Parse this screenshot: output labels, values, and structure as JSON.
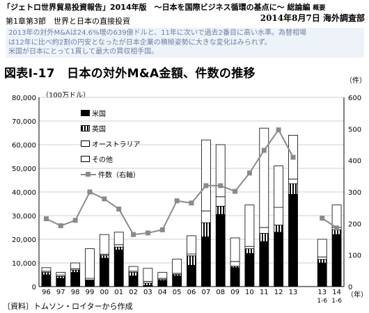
{
  "header": {
    "report_title": "「ジェトロ世界貿易投資報告」2014年版　～日本を国際ビジネス循環の基点に～",
    "overview": "総論編",
    "overview_suffix": "概要",
    "chapter": "第1章第3節　世界と日本の直接投資",
    "date": "2014年8月7日 海外調査部"
  },
  "summary_lines": [
    "2013年の対外M&Aは24.6%増の639億ドルと、11年に次いで過去2番目に高い水準。為替相場",
    "は12年に比べ約2割の円安となったが日本企業の積極姿勢に大きな変化はみられず。",
    "米国が日本にとって1貫して最大の買収相手国。"
  ],
  "figure_title": "図表Ⅰ-17　日本の対外M&A金額、件数の推移",
  "source": "〔資料〕トムソン・ロイターから作成",
  "chart_data": {
    "type": "bar",
    "stacked": true,
    "ylabel": "（100万ドル）",
    "y2label": "（件）",
    "xlabel_suffix": "（年）",
    "ylim": [
      0,
      80000
    ],
    "y2lim": [
      0,
      600
    ],
    "yticks": [
      "0",
      "10,000",
      "20,000",
      "30,000",
      "40,000",
      "50,000",
      "60,000",
      "70,000",
      "80,000"
    ],
    "y2ticks": [
      "0",
      "100",
      "200",
      "300",
      "400",
      "500",
      "600"
    ],
    "categories": [
      "96",
      "97",
      "98",
      "99",
      "00",
      "01",
      "02",
      "03",
      "04",
      "05",
      "06",
      "07",
      "08",
      "09",
      "10",
      "11",
      "12",
      "13",
      "13\n1-6",
      "14\n1-6"
    ],
    "legend_placement": "top-left",
    "colors": {
      "us": "#000000",
      "uk": "hatched",
      "au": "#ffffff",
      "other": "#ffffff",
      "count": "#8a8a8a"
    },
    "series": [
      {
        "name": "米国",
        "values": [
          5000,
          3500,
          6000,
          2500,
          12000,
          15500,
          4500,
          500,
          2500,
          4500,
          9000,
          21000,
          30500,
          8000,
          14000,
          19000,
          23000,
          39000,
          10000,
          22000
        ]
      },
      {
        "name": "英国",
        "values": [
          1000,
          800,
          1000,
          300,
          1200,
          1200,
          1500,
          1000,
          500,
          600,
          4000,
          6000,
          3500,
          600,
          2000,
          3500,
          3000,
          4500,
          1500,
          2000
        ]
      },
      {
        "name": "オーストラリア",
        "values": [
          500,
          500,
          500,
          700,
          500,
          1000,
          500,
          700,
          500,
          500,
          800,
          5000,
          4000,
          2000,
          1000,
          2500,
          7500,
          2000,
          1000,
          1000
        ]
      },
      {
        "name": "その他",
        "values": [
          1500,
          1200,
          2500,
          12500,
          8300,
          5300,
          2000,
          5500,
          2500,
          6000,
          7700,
          30000,
          22000,
          10000,
          17500,
          42000,
          17500,
          18500,
          7500,
          9500
        ]
      }
    ],
    "line_series": {
      "name": "件数（右軸）",
      "values": [
        215,
        193,
        210,
        300,
        278,
        246,
        165,
        170,
        180,
        272,
        265,
        320,
        320,
        302,
        360,
        432,
        497,
        410,
        217,
        186
      ]
    }
  }
}
